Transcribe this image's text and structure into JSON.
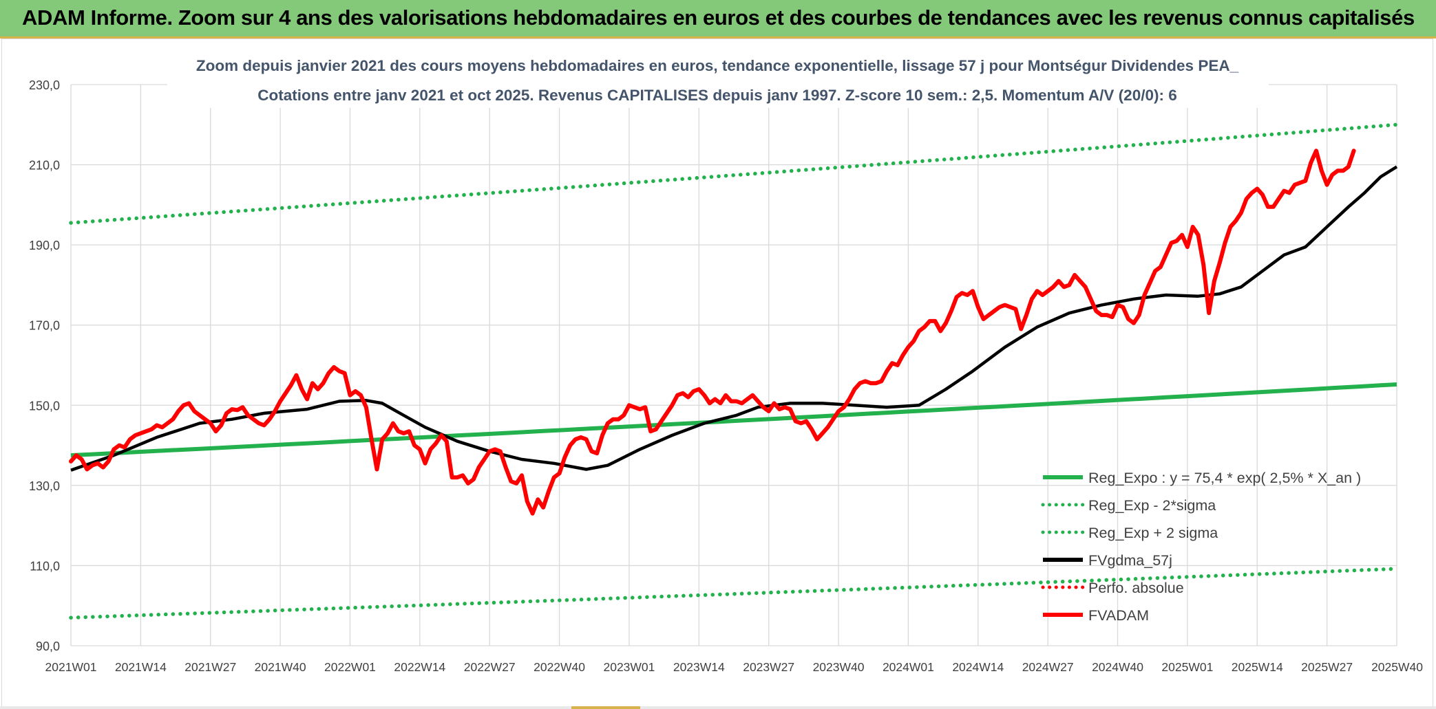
{
  "header": {
    "title": "ADAM Informe. Zoom sur 4 ans des valorisations hebdomadaires en euros et des courbes de tendances avec les revenus connus capitalisés"
  },
  "colors": {
    "header_bg": "#84c97a",
    "reg_green": "#22b14c",
    "price_red": "#ff0000",
    "ma_black": "#000000",
    "title_text": "#44546a",
    "axis_text": "#404040"
  },
  "chart_data": {
    "type": "line",
    "title_line1": "Zoom depuis janvier 2021 des cours moyens hebdomadaires en euros, tendance exponentielle, lissage 57 j pour Montségur Dividendes PEA_",
    "title_line2": "Cotations entre janv 2021 et oct 2025. Revenus CAPITALISES depuis janv 1997. Z-score 10 sem.: 2,5. Momentum A/V (20/0): 6",
    "ylim": [
      90,
      230
    ],
    "yticks": [
      "90,0",
      "110,0",
      "130,0",
      "150,0",
      "170,0",
      "190,0",
      "210,0",
      "230,0"
    ],
    "ytick_values": [
      90,
      110,
      130,
      150,
      170,
      190,
      210,
      230
    ],
    "xticks": [
      "2021W01",
      "2021W14",
      "2021W27",
      "2021W40",
      "2022W01",
      "2022W14",
      "2022W27",
      "2022W40",
      "2023W01",
      "2023W14",
      "2023W27",
      "2023W40",
      "2024W01",
      "2024W14",
      "2024W27",
      "2024W40",
      "2025W01",
      "2025W14",
      "2025W27",
      "2025W40"
    ],
    "x_range_weeks": [
      0,
      247
    ],
    "legend": [
      {
        "key": "reg",
        "label": "Reg_Expo : y = 75,4 * exp( 2,5% *  X_an )",
        "style": "solid",
        "color": "#22b14c"
      },
      {
        "key": "low",
        "label": "Reg_Exp - 2*sigma",
        "style": "dotted",
        "color": "#22b14c"
      },
      {
        "key": "high",
        "label": "Reg_Exp + 2 sigma",
        "style": "dotted",
        "color": "#22b14c"
      },
      {
        "key": "ma",
        "label": "FVgdma_57j",
        "style": "solid",
        "color": "#000000"
      },
      {
        "key": "perf",
        "label": "Perfo. absolue",
        "style": "dotted",
        "color": "#ff0000"
      },
      {
        "key": "price",
        "label": "FVADAM",
        "style": "solid",
        "color": "#ff0000"
      }
    ],
    "reg_expo": {
      "start": 137.5,
      "end": 155.2
    },
    "reg_minus_2sigma": {
      "start": 97.0,
      "end": 109.2
    },
    "reg_plus_2sigma": {
      "start": 195.5,
      "end": 220.0
    },
    "fvgdma_57j": [
      [
        0,
        133.8
      ],
      [
        8,
        137.5
      ],
      [
        16,
        142.0
      ],
      [
        24,
        145.5
      ],
      [
        30,
        146.5
      ],
      [
        36,
        148.0
      ],
      [
        44,
        149.0
      ],
      [
        50,
        151.0
      ],
      [
        55,
        151.2
      ],
      [
        58,
        150.5
      ],
      [
        62,
        147.5
      ],
      [
        66,
        144.5
      ],
      [
        72,
        141.0
      ],
      [
        78,
        138.5
      ],
      [
        84,
        136.5
      ],
      [
        90,
        135.5
      ],
      [
        96,
        134.0
      ],
      [
        100,
        135.0
      ],
      [
        106,
        139.0
      ],
      [
        112,
        142.5
      ],
      [
        118,
        145.5
      ],
      [
        124,
        147.5
      ],
      [
        128,
        149.5
      ],
      [
        134,
        150.5
      ],
      [
        140,
        150.5
      ],
      [
        146,
        150.0
      ],
      [
        152,
        149.5
      ],
      [
        158,
        150.0
      ],
      [
        163,
        154.0
      ],
      [
        168,
        158.5
      ],
      [
        174,
        164.5
      ],
      [
        180,
        169.5
      ],
      [
        186,
        173.0
      ],
      [
        192,
        175.0
      ],
      [
        198,
        176.5
      ],
      [
        204,
        177.5
      ],
      [
        210,
        177.2
      ],
      [
        214,
        177.8
      ],
      [
        218,
        179.5
      ],
      [
        222,
        183.5
      ],
      [
        226,
        187.5
      ],
      [
        230,
        189.5
      ],
      [
        234,
        194.5
      ],
      [
        238,
        199.5
      ],
      [
        241,
        203.0
      ],
      [
        244,
        207.0
      ],
      [
        247,
        209.5
      ]
    ],
    "fvadam": [
      [
        0,
        136.0
      ],
      [
        1,
        137.5
      ],
      [
        2,
        136.5
      ],
      [
        3,
        134.0
      ],
      [
        4,
        135.0
      ],
      [
        5,
        135.5
      ],
      [
        6,
        134.5
      ],
      [
        7,
        136.0
      ],
      [
        8,
        139.0
      ],
      [
        9,
        140.0
      ],
      [
        10,
        139.5
      ],
      [
        11,
        141.5
      ],
      [
        12,
        142.5
      ],
      [
        13,
        143.0
      ],
      [
        14,
        143.5
      ],
      [
        15,
        144.0
      ],
      [
        16,
        145.0
      ],
      [
        17,
        144.5
      ],
      [
        18,
        145.5
      ],
      [
        19,
        146.5
      ],
      [
        20,
        148.5
      ],
      [
        21,
        150.0
      ],
      [
        22,
        150.5
      ],
      [
        23,
        148.5
      ],
      [
        24,
        147.5
      ],
      [
        25,
        146.5
      ],
      [
        26,
        145.5
      ],
      [
        27,
        143.5
      ],
      [
        28,
        145.0
      ],
      [
        29,
        148.0
      ],
      [
        30,
        149.0
      ],
      [
        31,
        148.8
      ],
      [
        32,
        149.5
      ],
      [
        33,
        147.5
      ],
      [
        34,
        146.5
      ],
      [
        35,
        145.5
      ],
      [
        36,
        145.0
      ],
      [
        37,
        146.5
      ],
      [
        38,
        148.5
      ],
      [
        39,
        151.0
      ],
      [
        40,
        153.0
      ],
      [
        41,
        155.0
      ],
      [
        42,
        157.5
      ],
      [
        43,
        154.0
      ],
      [
        44,
        151.5
      ],
      [
        45,
        155.5
      ],
      [
        46,
        154.0
      ],
      [
        47,
        155.5
      ],
      [
        48,
        158.0
      ],
      [
        49,
        159.5
      ],
      [
        50,
        158.5
      ],
      [
        51,
        158.0
      ],
      [
        52,
        152.5
      ],
      [
        53,
        153.5
      ],
      [
        54,
        152.5
      ],
      [
        55,
        149.5
      ],
      [
        56,
        141.5
      ],
      [
        57,
        134.0
      ],
      [
        58,
        141.5
      ],
      [
        59,
        143.0
      ],
      [
        60,
        145.5
      ],
      [
        61,
        143.5
      ],
      [
        62,
        143.0
      ],
      [
        63,
        143.5
      ],
      [
        64,
        140.0
      ],
      [
        65,
        139.0
      ],
      [
        66,
        135.5
      ],
      [
        67,
        139.0
      ],
      [
        68,
        140.5
      ],
      [
        69,
        142.5
      ],
      [
        70,
        141.0
      ],
      [
        71,
        132.0
      ],
      [
        72,
        132.0
      ],
      [
        73,
        132.5
      ],
      [
        74,
        130.5
      ],
      [
        75,
        131.5
      ],
      [
        76,
        134.5
      ],
      [
        77,
        136.5
      ],
      [
        78,
        138.5
      ],
      [
        79,
        139.0
      ],
      [
        80,
        138.5
      ],
      [
        81,
        134.5
      ],
      [
        82,
        131.0
      ],
      [
        83,
        130.5
      ],
      [
        84,
        132.5
      ],
      [
        85,
        126.0
      ],
      [
        86,
        123.0
      ],
      [
        87,
        126.5
      ],
      [
        88,
        124.5
      ],
      [
        89,
        128.5
      ],
      [
        90,
        132.0
      ],
      [
        91,
        133.0
      ],
      [
        92,
        137.0
      ],
      [
        93,
        140.0
      ],
      [
        94,
        141.5
      ],
      [
        95,
        142.0
      ],
      [
        96,
        141.5
      ],
      [
        97,
        138.5
      ],
      [
        98,
        138.0
      ],
      [
        99,
        142.5
      ],
      [
        100,
        145.5
      ],
      [
        101,
        146.5
      ],
      [
        102,
        146.5
      ],
      [
        103,
        147.5
      ],
      [
        104,
        150.0
      ],
      [
        105,
        149.5
      ],
      [
        106,
        149.0
      ],
      [
        107,
        149.5
      ],
      [
        108,
        143.5
      ],
      [
        109,
        144.0
      ],
      [
        110,
        146.0
      ],
      [
        111,
        148.0
      ],
      [
        112,
        150.0
      ],
      [
        113,
        152.5
      ],
      [
        114,
        153.0
      ],
      [
        115,
        152.0
      ],
      [
        116,
        153.5
      ],
      [
        117,
        154.0
      ],
      [
        118,
        152.5
      ],
      [
        119,
        150.5
      ],
      [
        120,
        151.5
      ],
      [
        121,
        150.5
      ],
      [
        122,
        152.5
      ],
      [
        123,
        151.0
      ],
      [
        124,
        151.0
      ],
      [
        125,
        150.5
      ],
      [
        126,
        151.5
      ],
      [
        127,
        152.5
      ],
      [
        128,
        151.0
      ],
      [
        129,
        149.5
      ],
      [
        130,
        148.5
      ],
      [
        131,
        150.5
      ],
      [
        132,
        149.0
      ],
      [
        133,
        149.5
      ],
      [
        134,
        149.0
      ],
      [
        135,
        146.0
      ],
      [
        136,
        145.5
      ],
      [
        137,
        146.0
      ],
      [
        138,
        144.0
      ],
      [
        139,
        141.5
      ],
      [
        140,
        143.0
      ],
      [
        141,
        144.5
      ],
      [
        142,
        146.5
      ],
      [
        143,
        148.5
      ],
      [
        144,
        149.5
      ],
      [
        145,
        151.5
      ],
      [
        146,
        154.0
      ],
      [
        147,
        155.5
      ],
      [
        148,
        156.0
      ],
      [
        149,
        155.5
      ],
      [
        150,
        155.5
      ],
      [
        151,
        156.0
      ],
      [
        152,
        158.5
      ],
      [
        153,
        160.5
      ],
      [
        154,
        160.0
      ],
      [
        155,
        162.5
      ],
      [
        156,
        164.5
      ],
      [
        157,
        166.0
      ],
      [
        158,
        168.5
      ],
      [
        159,
        169.5
      ],
      [
        160,
        171.0
      ],
      [
        161,
        171.0
      ],
      [
        162,
        168.5
      ],
      [
        163,
        170.5
      ],
      [
        164,
        173.5
      ],
      [
        165,
        177.0
      ],
      [
        166,
        178.0
      ],
      [
        167,
        177.5
      ],
      [
        168,
        178.5
      ],
      [
        169,
        174.5
      ],
      [
        170,
        171.5
      ],
      [
        171,
        172.5
      ],
      [
        172,
        173.5
      ],
      [
        173,
        174.5
      ],
      [
        174,
        175.0
      ],
      [
        175,
        174.5
      ],
      [
        176,
        174.0
      ],
      [
        177,
        169.0
      ],
      [
        178,
        172.5
      ],
      [
        179,
        176.5
      ],
      [
        180,
        178.5
      ],
      [
        181,
        177.5
      ],
      [
        182,
        178.5
      ],
      [
        183,
        179.5
      ],
      [
        184,
        181.0
      ],
      [
        185,
        179.5
      ],
      [
        186,
        180.0
      ],
      [
        187,
        182.5
      ],
      [
        188,
        181.0
      ],
      [
        189,
        179.5
      ],
      [
        190,
        176.5
      ],
      [
        191,
        173.5
      ],
      [
        192,
        172.5
      ],
      [
        193,
        172.5
      ],
      [
        194,
        172.0
      ],
      [
        195,
        175.0
      ],
      [
        196,
        174.5
      ],
      [
        197,
        171.5
      ],
      [
        198,
        170.5
      ],
      [
        199,
        172.5
      ],
      [
        200,
        177.5
      ],
      [
        201,
        180.5
      ],
      [
        202,
        183.5
      ],
      [
        203,
        184.5
      ],
      [
        204,
        187.5
      ],
      [
        205,
        190.5
      ],
      [
        206,
        191.0
      ],
      [
        207,
        192.5
      ],
      [
        208,
        189.5
      ],
      [
        209,
        194.5
      ],
      [
        210,
        192.5
      ],
      [
        211,
        185.0
      ],
      [
        212,
        173.0
      ],
      [
        213,
        181.0
      ],
      [
        214,
        185.5
      ],
      [
        215,
        190.5
      ],
      [
        216,
        194.5
      ],
      [
        217,
        196.0
      ],
      [
        218,
        198.0
      ],
      [
        219,
        201.5
      ],
      [
        220,
        203.0
      ],
      [
        221,
        204.0
      ],
      [
        222,
        202.5
      ],
      [
        223,
        199.5
      ],
      [
        224,
        199.5
      ],
      [
        225,
        201.5
      ],
      [
        226,
        203.5
      ],
      [
        227,
        203.0
      ],
      [
        228,
        205.0
      ],
      [
        229,
        205.5
      ],
      [
        230,
        206.0
      ],
      [
        231,
        210.5
      ],
      [
        232,
        213.5
      ],
      [
        233,
        208.5
      ],
      [
        234,
        205.0
      ],
      [
        235,
        207.5
      ],
      [
        236,
        208.5
      ],
      [
        237,
        208.5
      ],
      [
        238,
        209.5
      ],
      [
        239,
        213.5
      ]
    ]
  }
}
